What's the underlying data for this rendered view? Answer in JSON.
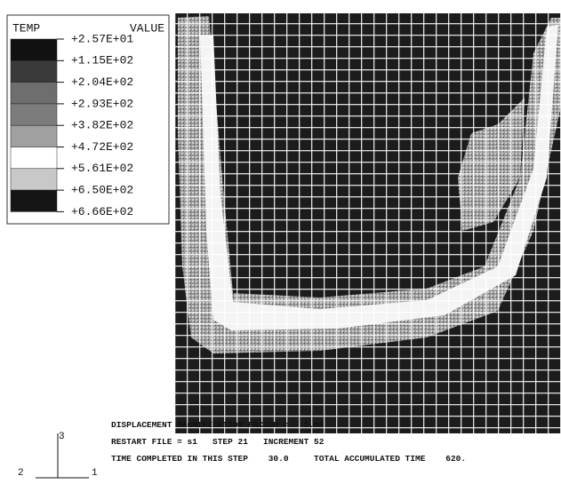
{
  "legend": {
    "title": "TEMP",
    "value_header": "VALUE",
    "levels": [
      "+2.57E+01",
      "+1.15E+02",
      "+2.04E+02",
      "+2.93E+02",
      "+3.82E+02",
      "+4.72E+02",
      "+5.61E+02",
      "+6.50E+02",
      "+6.66E+02"
    ]
  },
  "triad": {
    "vertical": "3",
    "left": "2",
    "right": "1"
  },
  "info": {
    "lines": [
      "DISPLACEMENT MAGNIFICATION FACTOR =   1.00",
      "RESTART FILE = s1   STEP 21   INCREMENT 52",
      "TIME COMPLETED IN THIS STEP    30.0     TOTAL ACCUMULATED TIME    620."
    ]
  }
}
